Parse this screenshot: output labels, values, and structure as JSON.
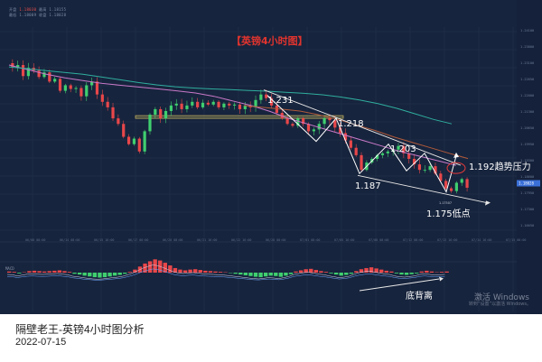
{
  "header": {
    "labels": [
      "开盘",
      "最高",
      "最低",
      "收盘"
    ],
    "values": [
      "1.18030",
      "1.18155",
      "1.18009",
      "1.18028"
    ]
  },
  "chart_data": {
    "type": "candlestick",
    "title": "【英镑4小时图】",
    "price_range": [
      1.1685,
      1.248
    ],
    "price_ticks": [
      "1.24100",
      "1.23800",
      "1.23100",
      "1.22650",
      "1.22000",
      "1.21300",
      "1.20650",
      "1.19950",
      "1.19300",
      "1.18600",
      "1.17950",
      "1.17300",
      "1.16650"
    ],
    "current_price": "1.18028",
    "time_ticks": [
      "06/08 08:00",
      "06/14 08:00",
      "06/15 16:00",
      "06/17 00:00",
      "06/20 08:00",
      "06/21 16:00",
      "06/22 16:00",
      "06/28 00:00",
      "07/01 08:00",
      "07/05 16:00",
      "07/08 08:00",
      "07/12 08:00",
      "07/13 16:00",
      "07/14 16:00",
      "07/15 00:00"
    ],
    "price_points": [
      1.248,
      1.246,
      1.247,
      1.241,
      1.2455,
      1.244,
      1.2405,
      1.243,
      1.238,
      1.2395,
      1.233,
      1.236,
      1.234,
      1.2345,
      1.23,
      1.236,
      1.238,
      1.231,
      1.227,
      1.224,
      1.218,
      1.215,
      1.208,
      1.204,
      1.207,
      1.2,
      1.211,
      1.22,
      1.223,
      1.218,
      1.222,
      1.225,
      1.226,
      1.223,
      1.225,
      1.227,
      1.224,
      1.2265,
      1.2255,
      1.227,
      1.224,
      1.226,
      1.225,
      1.2255,
      1.223,
      1.225,
      1.224,
      1.228,
      1.231,
      1.229,
      1.225,
      1.221,
      1.218,
      1.215,
      1.214,
      1.218,
      1.215,
      1.211,
      1.212,
      1.215,
      1.218,
      1.217,
      1.213,
      1.21,
      1.206,
      1.202,
      1.198,
      1.19,
      1.194,
      1.196,
      1.198,
      1.199,
      1.2,
      1.201,
      1.203,
      1.199,
      1.196,
      1.193,
      1.19,
      1.19,
      1.192,
      1.188,
      1.184,
      1.18,
      1.1785,
      1.183,
      1.185,
      1.1803
    ],
    "moving_averages": [
      {
        "color": "#c879c8",
        "values": [
          1.247,
          1.2445,
          1.242,
          1.24,
          1.2385,
          1.237,
          1.236,
          1.235,
          1.234,
          1.233,
          1.2318,
          1.23,
          1.2275,
          1.225,
          1.2218,
          1.218,
          1.215,
          1.212,
          1.209,
          1.206,
          1.203,
          1.2,
          1.1975,
          1.195,
          1.1925
        ]
      },
      {
        "color": "#2fae9e",
        "values": [
          1.246,
          1.245,
          1.244,
          1.243,
          1.242,
          1.2405,
          1.239,
          1.2375,
          1.2362,
          1.2352,
          1.2345,
          1.234,
          1.2336,
          1.2332,
          1.2328,
          1.2322,
          1.2316,
          1.2308,
          1.2296,
          1.228,
          1.226,
          1.2235,
          1.2205,
          1.2175,
          1.215
        ]
      },
      {
        "color": "#b05a3a",
        "values": [
          1.225,
          1.224,
          1.223,
          1.222,
          1.22,
          1.2175,
          1.2145,
          1.2115,
          1.208,
          1.205,
          1.202,
          1.199,
          1.1962
        ]
      }
    ],
    "support_zone": [
      1.2185,
      1.2195
    ],
    "annotations": [
      {
        "label": "1.231",
        "price": 1.231
      },
      {
        "label": "1.218",
        "price": 1.218
      },
      {
        "label": "1.203",
        "price": 1.203
      },
      {
        "label": "1.187",
        "price": 1.187
      },
      {
        "label": "1.192趋势压力",
        "price": 1.192
      },
      {
        "label": "1.175低点",
        "price": 1.175
      },
      {
        "label": "1.17507",
        "price": 1.17507
      }
    ],
    "macd": {
      "label": "MACD",
      "histogram": [
        0.3,
        0.2,
        -0.2,
        0.1,
        0.4,
        0.5,
        0.4,
        0.3,
        0.4,
        0.5,
        0.6,
        0.4,
        0.2,
        -0.3,
        -0.5,
        -0.8,
        -1.0,
        -1.2,
        -1.3,
        -1.2,
        -1.0,
        -0.8,
        -0.6,
        -0.3,
        0.2,
        0.8,
        1.6,
        2.4,
        3.0,
        3.5,
        3.2,
        2.6,
        1.9,
        1.2,
        0.8,
        0.6,
        0.8,
        0.9,
        0.7,
        0.5,
        0.4,
        0.3,
        0.2,
        0.1,
        -0.1,
        -0.3,
        -0.5,
        -0.7,
        -0.9,
        -1.1,
        -1.2,
        -1.0,
        -0.8,
        -0.9,
        -1.1,
        -0.8,
        -0.4,
        0.3,
        0.6,
        0.9,
        1.0,
        0.7,
        0.4,
        0.2,
        -0.2,
        -0.5,
        -0.8,
        -0.6,
        -0.3,
        0.4,
        0.9,
        1.2,
        1.4,
        1.1,
        0.8,
        0.5,
        0.3,
        -0.2,
        -0.5,
        -0.6,
        -0.4,
        -0.2,
        0.3,
        0.5,
        0.3,
        0.1,
        0.2,
        0.3
      ],
      "annotation": "底背离"
    }
  },
  "caption": "隔壁老王-英镑4小时图分析",
  "date": "2022-07-15",
  "watermark": {
    "line1": "激活 Windows",
    "line2": "转到“设置”以激活 Windows。"
  }
}
